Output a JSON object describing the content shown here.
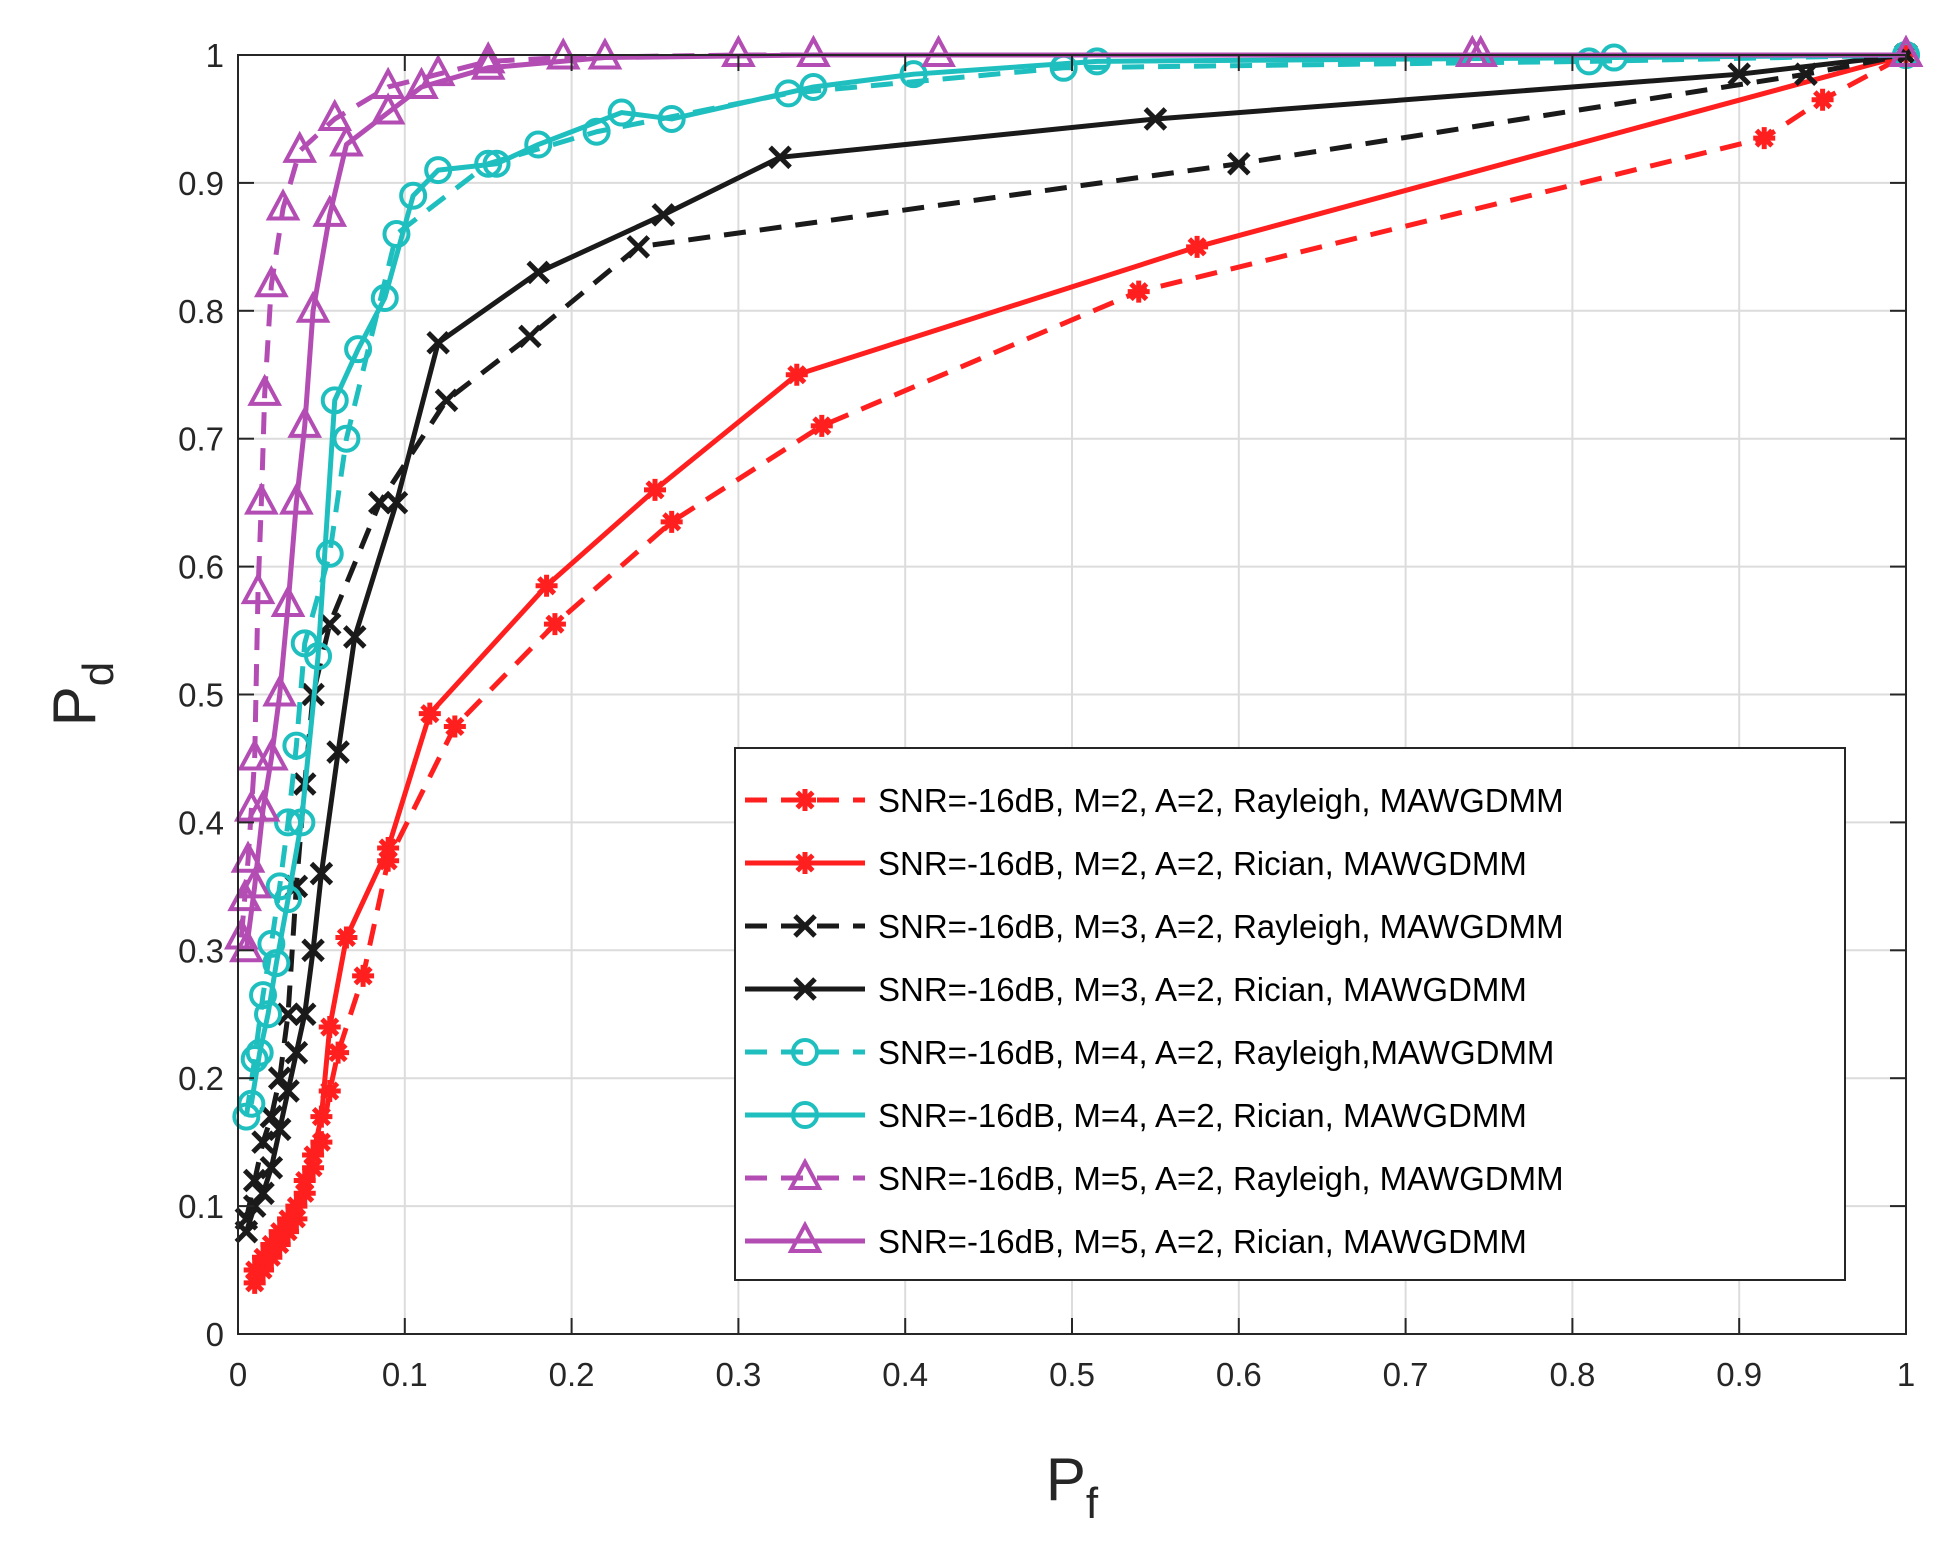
{
  "chart_data": {
    "type": "line",
    "xlabel": "P",
    "xlabel_sub": "f",
    "ylabel": "P",
    "ylabel_sub": "d",
    "xlim": [
      0,
      1
    ],
    "ylim": [
      0,
      1
    ],
    "xticks": [
      0,
      0.1,
      0.2,
      0.3,
      0.4,
      0.5,
      0.6,
      0.7,
      0.8,
      0.9,
      1
    ],
    "yticks": [
      0,
      0.1,
      0.2,
      0.3,
      0.4,
      0.5,
      0.6,
      0.7,
      0.8,
      0.9,
      1
    ],
    "xtick_labels": [
      "0",
      "0.1",
      "0.2",
      "0.3",
      "0.4",
      "0.5",
      "0.6",
      "0.7",
      "0.8",
      "0.9",
      "1"
    ],
    "ytick_labels": [
      "0",
      "0.1",
      "0.2",
      "0.3",
      "0.4",
      "0.5",
      "0.6",
      "0.7",
      "0.8",
      "0.9",
      "1"
    ],
    "grid": true,
    "legend_position": "bottom-right",
    "series": [
      {
        "name": "SNR=-16dB, M=2, A=2, Rayleigh, MAWGDMM",
        "color": "#ff1f1f",
        "dash": "dashed",
        "marker": "asterisk",
        "x": [
          0.01,
          0.015,
          0.02,
          0.025,
          0.03,
          0.035,
          0.04,
          0.045,
          0.05,
          0.055,
          0.06,
          0.075,
          0.09,
          0.13,
          0.19,
          0.26,
          0.35,
          0.54,
          0.915,
          0.95,
          1
        ],
        "y": [
          0.04,
          0.05,
          0.06,
          0.07,
          0.08,
          0.09,
          0.11,
          0.13,
          0.15,
          0.19,
          0.22,
          0.28,
          0.37,
          0.475,
          0.555,
          0.635,
          0.71,
          0.815,
          0.935,
          0.965,
          1
        ]
      },
      {
        "name": "SNR=-16dB, M=2, A=2, Rician, MAWGDMM",
        "color": "#ff1f1f",
        "dash": "solid",
        "marker": "asterisk",
        "x": [
          0.01,
          0.015,
          0.02,
          0.025,
          0.03,
          0.035,
          0.04,
          0.045,
          0.05,
          0.055,
          0.065,
          0.09,
          0.115,
          0.185,
          0.25,
          0.335,
          0.575,
          1
        ],
        "y": [
          0.05,
          0.06,
          0.07,
          0.08,
          0.09,
          0.1,
          0.12,
          0.14,
          0.17,
          0.24,
          0.31,
          0.38,
          0.485,
          0.585,
          0.66,
          0.75,
          0.85,
          1
        ]
      },
      {
        "name": "SNR=-16dB, M=3, A=2, Rayleigh, MAWGDMM",
        "color": "#1a1a1a",
        "dash": "dashed",
        "marker": "x",
        "x": [
          0.005,
          0.01,
          0.015,
          0.02,
          0.025,
          0.03,
          0.035,
          0.04,
          0.045,
          0.055,
          0.085,
          0.125,
          0.175,
          0.24,
          0.6,
          0.94,
          1
        ],
        "y": [
          0.09,
          0.12,
          0.15,
          0.17,
          0.2,
          0.25,
          0.35,
          0.43,
          0.5,
          0.555,
          0.65,
          0.73,
          0.78,
          0.85,
          0.915,
          0.985,
          1
        ]
      },
      {
        "name": "SNR=-16dB, M=3, A=2, Rician, MAWGDMM",
        "color": "#1a1a1a",
        "dash": "solid",
        "marker": "x",
        "x": [
          0.005,
          0.01,
          0.015,
          0.02,
          0.025,
          0.03,
          0.035,
          0.04,
          0.045,
          0.05,
          0.06,
          0.07,
          0.095,
          0.12,
          0.18,
          0.255,
          0.325,
          0.55,
          0.9,
          1
        ],
        "y": [
          0.08,
          0.1,
          0.11,
          0.13,
          0.16,
          0.19,
          0.22,
          0.25,
          0.3,
          0.36,
          0.455,
          0.545,
          0.65,
          0.775,
          0.83,
          0.875,
          0.92,
          0.95,
          0.985,
          1
        ]
      },
      {
        "name": "SNR=-16dB, M=4, A=2, Rayleigh,MAWGDMM",
        "color": "#1fbfbf",
        "dash": "dashed",
        "marker": "circle",
        "x": [
          0.005,
          0.01,
          0.015,
          0.02,
          0.025,
          0.03,
          0.035,
          0.04,
          0.055,
          0.065,
          0.095,
          0.15,
          0.215,
          0.33,
          0.495,
          0.81,
          1
        ],
        "y": [
          0.17,
          0.215,
          0.265,
          0.305,
          0.35,
          0.4,
          0.46,
          0.54,
          0.61,
          0.7,
          0.86,
          0.915,
          0.94,
          0.97,
          0.99,
          0.995,
          1
        ]
      },
      {
        "name": "SNR=-16dB, M=4, A=2, Rician, MAWGDMM",
        "color": "#1fbfbf",
        "dash": "solid",
        "marker": "circle",
        "x": [
          0.008,
          0.013,
          0.018,
          0.023,
          0.03,
          0.038,
          0.048,
          0.058,
          0.072,
          0.088,
          0.105,
          0.12,
          0.155,
          0.18,
          0.23,
          0.26,
          0.345,
          0.405,
          0.515,
          0.825,
          1
        ],
        "y": [
          0.18,
          0.22,
          0.25,
          0.29,
          0.34,
          0.4,
          0.53,
          0.73,
          0.77,
          0.81,
          0.89,
          0.91,
          0.915,
          0.93,
          0.955,
          0.95,
          0.975,
          0.985,
          0.995,
          0.998,
          1
        ]
      },
      {
        "name": "SNR=-16dB, M=5, A=2, Rayleigh, MAWGDMM",
        "color": "#b34db3",
        "dash": "dashed",
        "marker": "triangle",
        "x": [
          0.002,
          0.004,
          0.006,
          0.008,
          0.01,
          0.012,
          0.014,
          0.016,
          0.02,
          0.027,
          0.037,
          0.058,
          0.09,
          0.12,
          0.15,
          0.195,
          0.3,
          0.42,
          0.745,
          1
        ],
        "y": [
          0.31,
          0.34,
          0.37,
          0.41,
          0.45,
          0.58,
          0.65,
          0.735,
          0.82,
          0.88,
          0.925,
          0.95,
          0.975,
          0.985,
          0.995,
          0.998,
          1,
          1,
          1,
          1
        ]
      },
      {
        "name": "SNR=-16dB, M=5, A=2, Rician, MAWGDMM",
        "color": "#b34db3",
        "dash": "solid",
        "marker": "triangle",
        "x": [
          0.005,
          0.01,
          0.015,
          0.02,
          0.025,
          0.03,
          0.035,
          0.04,
          0.045,
          0.055,
          0.065,
          0.09,
          0.11,
          0.15,
          0.22,
          0.345,
          0.74,
          1
        ],
        "y": [
          0.3,
          0.35,
          0.41,
          0.45,
          0.5,
          0.57,
          0.65,
          0.71,
          0.8,
          0.875,
          0.93,
          0.955,
          0.975,
          0.99,
          0.998,
          1,
          1,
          1
        ]
      }
    ]
  }
}
